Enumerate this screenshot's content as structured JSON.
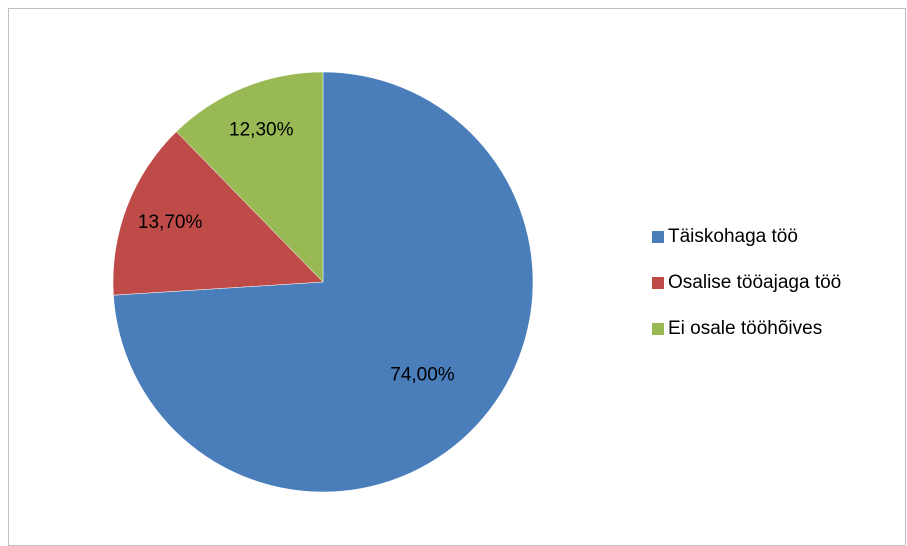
{
  "chart_data": {
    "type": "pie",
    "categories": [
      "Täiskohaga töö",
      "Osalise tööajaga töö",
      "Ei osale tööhõives"
    ],
    "values": [
      74.0,
      13.7,
      12.3
    ],
    "value_labels": [
      "74,00%",
      "13,70%",
      "12,30%"
    ],
    "colors": [
      "#4a7ebb",
      "#be4b48",
      "#98b954"
    ],
    "legend": "right"
  }
}
